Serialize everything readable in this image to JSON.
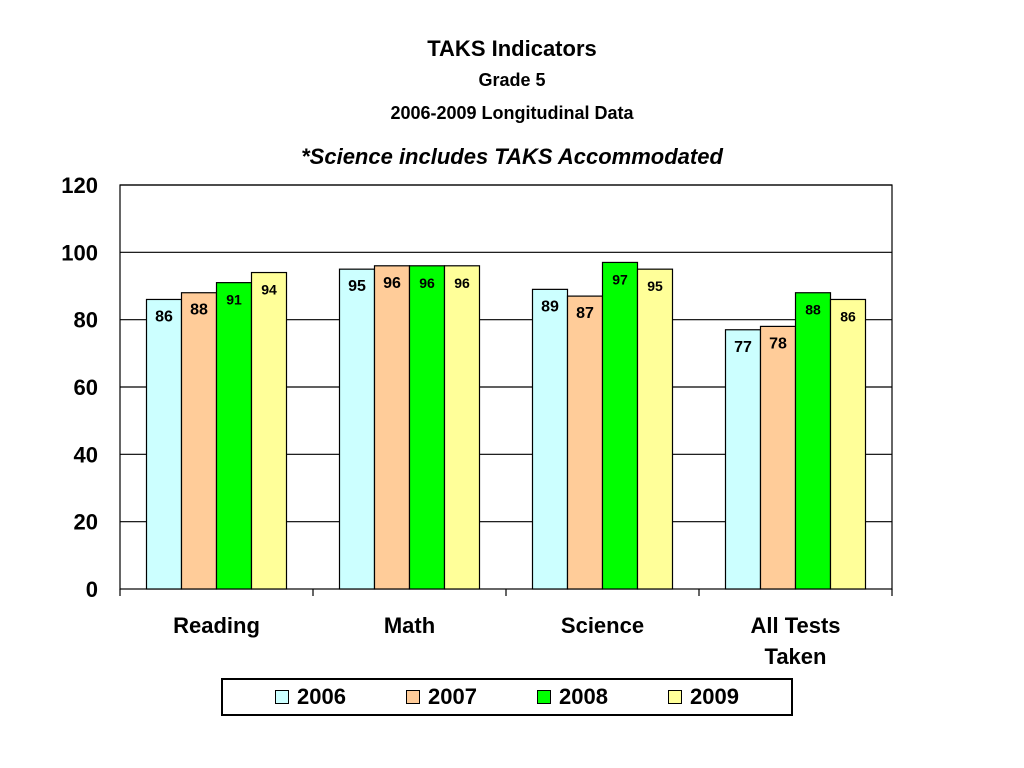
{
  "chart_data": {
    "type": "bar",
    "title": "TAKS Indicators",
    "subtitle_1": "Grade 5",
    "subtitle_2": "2006-2009 Longitudinal Data",
    "subtitle_3": "*Science includes TAKS Accommodated",
    "categories": [
      "Reading",
      "Math",
      "Science",
      "All Tests Taken"
    ],
    "series": [
      {
        "name": "2006",
        "color": "#ccffff",
        "values": [
          86,
          95,
          89,
          77
        ]
      },
      {
        "name": "2007",
        "color": "#ffcc99",
        "values": [
          88,
          96,
          87,
          78
        ]
      },
      {
        "name": "2008",
        "color": "#00ff00",
        "values": [
          91,
          96,
          97,
          88
        ]
      },
      {
        "name": "2009",
        "color": "#ffff99",
        "values": [
          94,
          96,
          95,
          86
        ]
      }
    ],
    "ylim": [
      0,
      120
    ],
    "yticks": [
      0,
      20,
      40,
      60,
      80,
      100,
      120
    ],
    "grid": true,
    "legend_position": "bottom",
    "xlabel": "",
    "ylabel": ""
  }
}
